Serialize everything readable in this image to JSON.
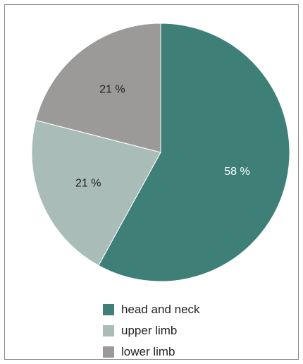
{
  "chart_data": {
    "type": "pie",
    "title": "",
    "categories": [
      "head and neck",
      "upper limb",
      "lower limb"
    ],
    "values": [
      58,
      21,
      21
    ],
    "value_labels": [
      "58 %",
      "21 %",
      "21 %"
    ],
    "colors": [
      "#3e8078",
      "#a9bcb8",
      "#9c9a98"
    ],
    "label_colors": [
      "#ffffff",
      "#231f20",
      "#231f20"
    ],
    "start_angle_deg": 0,
    "direction": "clockwise",
    "legend_position": "bottom"
  }
}
